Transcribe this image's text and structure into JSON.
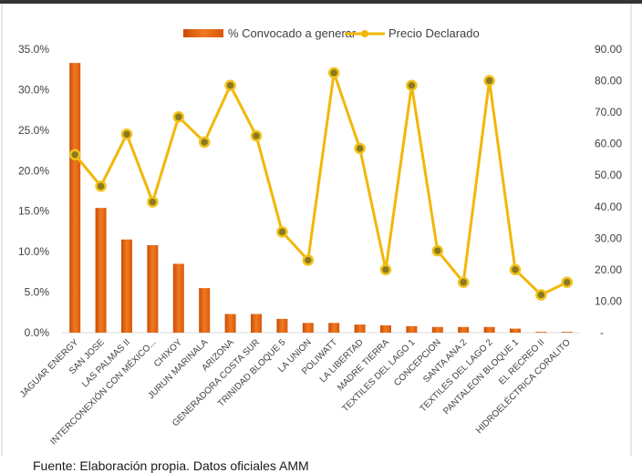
{
  "source_note": "Fuente: Elaboración propia. Datos oficiales AMM",
  "chart_data": {
    "type": "bar+line",
    "categories": [
      "JAGUAR ENERGY",
      "SAN JOSE",
      "LAS PALMAS II",
      "INTERCONEXIÓN CON MÉXICO...",
      "CHIXOY",
      "JURUN MARINALA",
      "ARIZONA",
      "GENERADORA COSTA SUR",
      "TRINIDAD BLOQUE 5",
      "LA UNION",
      "POLIWATT",
      "LA LIBERTAD",
      "MADRE TIERRA",
      "TEXTILES DEL LAGO 1",
      "CONCEPCION",
      "SANTA ANA 2",
      "TEXTILES DEL LAGO 2",
      "PANTALEON BLOQUE 1",
      "EL RECREO II",
      "HIDROELÉCTRICA CORALITO"
    ],
    "series": [
      {
        "name": "% Convocado a generar",
        "type": "bar",
        "axis": "left",
        "color": "#e8600c",
        "values": [
          33.3,
          15.4,
          11.5,
          10.8,
          8.5,
          5.5,
          2.3,
          2.3,
          1.7,
          1.2,
          1.2,
          1.0,
          0.9,
          0.8,
          0.7,
          0.7,
          0.7,
          0.5,
          0.1,
          0.1
        ]
      },
      {
        "name": "Precio Declarado",
        "type": "line",
        "axis": "right",
        "color": "#f2b707",
        "values": [
          56.5,
          46.5,
          63.0,
          41.5,
          68.5,
          60.5,
          78.5,
          62.5,
          32.0,
          23.0,
          82.5,
          58.5,
          20.0,
          78.5,
          26.0,
          16.0,
          80.0,
          20.0,
          12.0,
          16.0
        ]
      }
    ],
    "y_left": {
      "min": 0,
      "max": 35,
      "ticks": [
        "0.0%",
        "5.0%",
        "10.0%",
        "15.0%",
        "20.0%",
        "25.0%",
        "30.0%",
        "35.0%"
      ]
    },
    "y_right": {
      "min": 0,
      "max": 90,
      "ticks": [
        "-",
        "10.00",
        "20.00",
        "30.00",
        "40.00",
        "50.00",
        "60.00",
        "70.00",
        "80.00",
        "90.00"
      ]
    },
    "legend_position": "top",
    "grid": false
  }
}
